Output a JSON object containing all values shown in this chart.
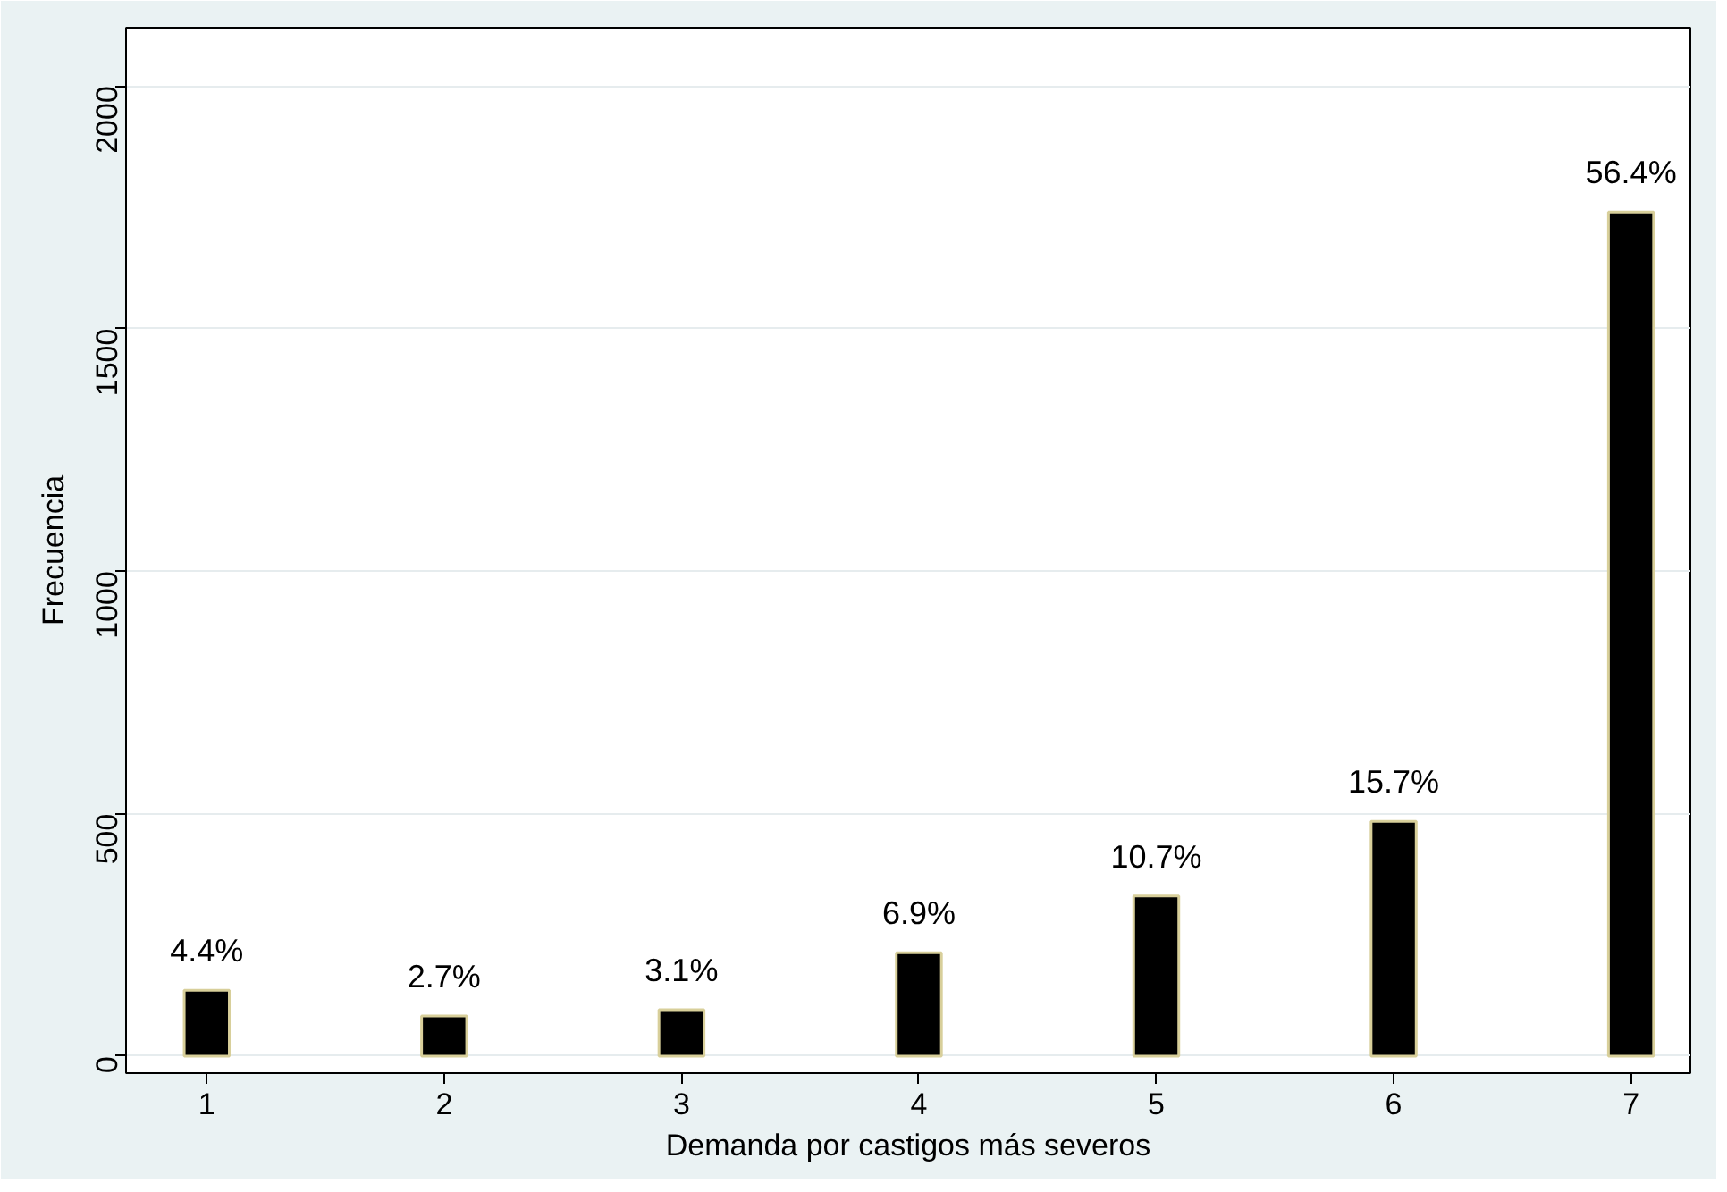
{
  "chart_data": {
    "type": "bar",
    "xlabel": "Demanda por castigos más severos",
    "ylabel": "Frecuencia",
    "x": [
      1,
      2,
      3,
      4,
      5,
      6,
      7
    ],
    "values": [
      136,
      83,
      96,
      213,
      330,
      484,
      1740
    ],
    "annotations": [
      {
        "text": "4.4%",
        "x": 1,
        "y": 136
      },
      {
        "text": "2.7%",
        "x": 2,
        "y": 83
      },
      {
        "text": "3.1%",
        "x": 3,
        "y": 96
      },
      {
        "text": "6.9%",
        "x": 4,
        "y": 213
      },
      {
        "text": "10.7%",
        "x": 5,
        "y": 330
      },
      {
        "text": "15.7%",
        "x": 6,
        "y": 484
      },
      {
        "text": "56.4%",
        "x": 7,
        "y": 1740
      }
    ],
    "color": "#000000",
    "xlim": [
      0.66,
      7.25
    ],
    "xticks": [
      1,
      2,
      3,
      4,
      5,
      6,
      7
    ],
    "ylim": [
      -35,
      2120
    ],
    "yticks": [
      0,
      500,
      1000,
      1500,
      2000
    ],
    "grid": "y"
  }
}
